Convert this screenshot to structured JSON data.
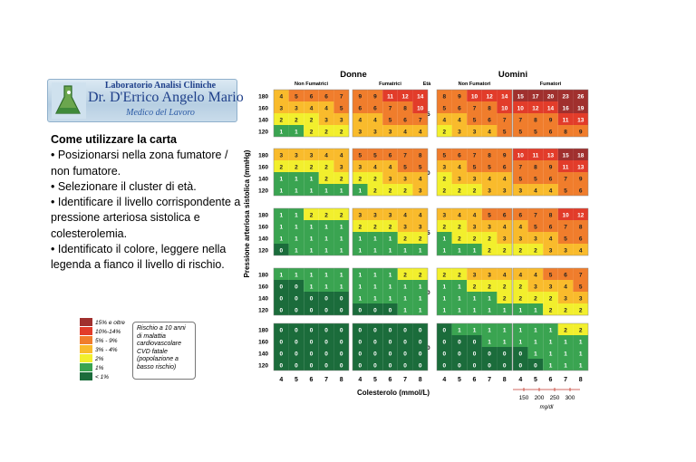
{
  "logo": {
    "lab": "Laboratorio Analisi Cliniche",
    "name": "Dr. D'Errico Angelo Mario",
    "subtitle": "Medico del Lavoro"
  },
  "instructions": {
    "title": "Come utilizzare la carta",
    "items": [
      "• Posizionarsi nella zona fumatore / non fumatore.",
      "• Selezionare il cluster di età.",
      "• Identificare il livello corrispondente a pressione arteriosa sistolica e colesterolemia.",
      "• Identificato il colore, leggere nella legenda a fianco il livello di rischio."
    ]
  },
  "legend": {
    "items": [
      {
        "label": "15% e oltre",
        "color": "#a0302e"
      },
      {
        "label": "10%-14%",
        "color": "#e23c2a"
      },
      {
        "label": "5% - 9%",
        "color": "#f07d2c"
      },
      {
        "label": "3% - 4%",
        "color": "#f9bb2c"
      },
      {
        "label": "2%",
        "color": "#f2ef2d"
      },
      {
        "label": "1%",
        "color": "#3aa451"
      },
      {
        "label": "< 1%",
        "color": "#1b6c3b"
      }
    ],
    "note": "Rischio a 10 anni di malattia cardiovascolare CVD fatale (popolazione a basso rischio)"
  },
  "chart_data": {
    "type": "heatmap",
    "sex_headers": [
      "Donne",
      "Uomini"
    ],
    "smoking_headers": [
      "Non Fumatrici",
      "Fumatrici",
      "Non Fumatori",
      "Fumatori"
    ],
    "age_header": "Età",
    "ages": [
      "65",
      "60",
      "55",
      "50",
      "40"
    ],
    "bp_levels": [
      "180",
      "160",
      "140",
      "120"
    ],
    "chol_levels": [
      "4",
      "5",
      "6",
      "7",
      "8"
    ],
    "ylabel": "Pressione arteriosa sistolica (mmHg)",
    "xlabel": "Colesterolo (mmol/L)",
    "mgdl_ticks": [
      "150",
      "200",
      "250",
      "300"
    ],
    "mgdl_unit": "mg/dl",
    "grids": [
      [
        [
          [
            4,
            5,
            6,
            6,
            7
          ],
          [
            3,
            3,
            4,
            4,
            5
          ],
          [
            2,
            2,
            2,
            3,
            3
          ],
          [
            1,
            1,
            2,
            2,
            2
          ]
        ],
        [
          [
            9,
            9,
            11,
            12,
            14
          ],
          [
            6,
            6,
            7,
            8,
            10
          ],
          [
            4,
            4,
            5,
            6,
            7
          ],
          [
            3,
            3,
            3,
            4,
            4
          ]
        ],
        [
          [
            8,
            9,
            10,
            12,
            14
          ],
          [
            5,
            6,
            7,
            8,
            10
          ],
          [
            4,
            4,
            5,
            6,
            7
          ],
          [
            2,
            3,
            3,
            4,
            5
          ]
        ],
        [
          [
            15,
            17,
            20,
            23,
            26
          ],
          [
            10,
            12,
            14,
            16,
            19
          ],
          [
            7,
            8,
            9,
            11,
            13
          ],
          [
            5,
            5,
            6,
            8,
            9
          ]
        ]
      ],
      [
        [
          [
            3,
            3,
            3,
            4,
            4
          ],
          [
            2,
            2,
            2,
            2,
            3
          ],
          [
            1,
            1,
            1,
            2,
            2
          ],
          [
            1,
            1,
            1,
            1,
            1
          ]
        ],
        [
          [
            5,
            5,
            6,
            7,
            8
          ],
          [
            3,
            4,
            4,
            5,
            5
          ],
          [
            2,
            2,
            3,
            3,
            4
          ],
          [
            1,
            2,
            2,
            2,
            3
          ]
        ],
        [
          [
            5,
            6,
            7,
            8,
            9
          ],
          [
            3,
            4,
            5,
            5,
            6
          ],
          [
            2,
            3,
            3,
            4,
            4
          ],
          [
            2,
            2,
            2,
            3,
            3
          ]
        ],
        [
          [
            10,
            11,
            13,
            15,
            18
          ],
          [
            7,
            8,
            9,
            11,
            13
          ],
          [
            5,
            5,
            6,
            7,
            9
          ],
          [
            3,
            4,
            4,
            5,
            6
          ]
        ]
      ],
      [
        [
          [
            1,
            1,
            2,
            2,
            2
          ],
          [
            1,
            1,
            1,
            1,
            1
          ],
          [
            1,
            1,
            1,
            1,
            1
          ],
          [
            0,
            1,
            1,
            1,
            1
          ]
        ],
        [
          [
            3,
            3,
            3,
            4,
            4
          ],
          [
            2,
            2,
            2,
            3,
            3
          ],
          [
            1,
            1,
            1,
            2,
            2
          ],
          [
            1,
            1,
            1,
            1,
            1
          ]
        ],
        [
          [
            3,
            4,
            4,
            5,
            6
          ],
          [
            2,
            2,
            3,
            3,
            4
          ],
          [
            1,
            2,
            2,
            2,
            3
          ],
          [
            1,
            1,
            1,
            2,
            2
          ]
        ],
        [
          [
            6,
            7,
            8,
            10,
            12
          ],
          [
            4,
            5,
            6,
            7,
            8
          ],
          [
            3,
            3,
            4,
            5,
            6
          ],
          [
            2,
            2,
            3,
            3,
            4
          ]
        ]
      ],
      [
        [
          [
            1,
            1,
            1,
            1,
            1
          ],
          [
            0,
            0,
            1,
            1,
            1
          ],
          [
            0,
            0,
            0,
            0,
            0
          ],
          [
            0,
            0,
            0,
            0,
            0
          ]
        ],
        [
          [
            1,
            1,
            1,
            2,
            2
          ],
          [
            1,
            1,
            1,
            1,
            1
          ],
          [
            1,
            1,
            1,
            1,
            1
          ],
          [
            0,
            0,
            0,
            1,
            1
          ]
        ],
        [
          [
            2,
            2,
            3,
            3,
            4
          ],
          [
            1,
            1,
            2,
            2,
            2
          ],
          [
            1,
            1,
            1,
            1,
            2
          ],
          [
            1,
            1,
            1,
            1,
            1
          ]
        ],
        [
          [
            4,
            4,
            5,
            6,
            7
          ],
          [
            2,
            3,
            3,
            4,
            5
          ],
          [
            2,
            2,
            2,
            3,
            3
          ],
          [
            1,
            1,
            2,
            2,
            2
          ]
        ]
      ],
      [
        [
          [
            0,
            0,
            0,
            0,
            0
          ],
          [
            0,
            0,
            0,
            0,
            0
          ],
          [
            0,
            0,
            0,
            0,
            0
          ],
          [
            0,
            0,
            0,
            0,
            0
          ]
        ],
        [
          [
            0,
            0,
            0,
            0,
            0
          ],
          [
            0,
            0,
            0,
            0,
            0
          ],
          [
            0,
            0,
            0,
            0,
            0
          ],
          [
            0,
            0,
            0,
            0,
            0
          ]
        ],
        [
          [
            0,
            1,
            1,
            1,
            1
          ],
          [
            0,
            0,
            0,
            1,
            1
          ],
          [
            0,
            0,
            0,
            0,
            0
          ],
          [
            0,
            0,
            0,
            0,
            0
          ]
        ],
        [
          [
            1,
            1,
            1,
            2,
            2
          ],
          [
            1,
            1,
            1,
            1,
            1
          ],
          [
            0,
            1,
            1,
            1,
            1
          ],
          [
            0,
            0,
            1,
            1,
            1
          ]
        ]
      ]
    ]
  }
}
